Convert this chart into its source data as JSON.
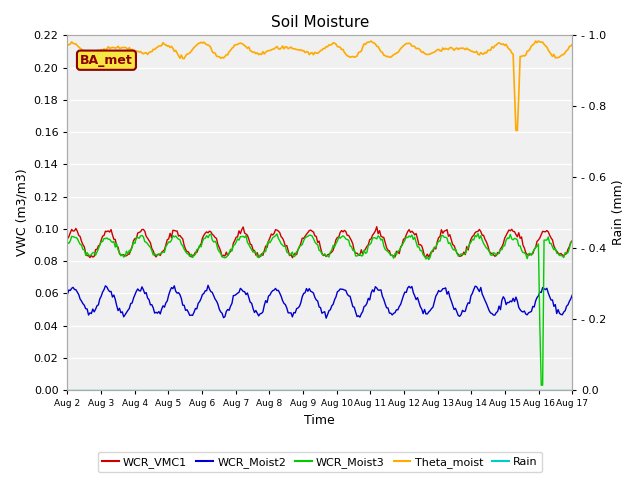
{
  "title": "Soil Moisture",
  "xlabel": "Time",
  "ylabel_left": "VWC (m3/m3)",
  "ylabel_right": "Rain (mm)",
  "ylim_left": [
    0.0,
    0.22
  ],
  "ylim_right": [
    0.0,
    1.0
  ],
  "background_color": "#f0f0f0",
  "plot_bg_color": "#f0f0f0",
  "annotation_text": "BA_met",
  "annotation_color": "#8b0000",
  "annotation_bg": "#f5e642",
  "colors": {
    "WCR_VMC1": "#cc0000",
    "WCR_Moist2": "#0000cc",
    "WCR_Moist3": "#00cc00",
    "Theta_moist": "#ffaa00",
    "Rain": "#00cccc"
  },
  "legend_labels": [
    "WCR_VMC1",
    "WCR_Moist2",
    "WCR_Moist3",
    "Theta_moist",
    "Rain"
  ],
  "right_ticks": [
    0.0,
    0.2,
    0.4,
    0.6,
    0.8,
    1.0
  ],
  "left_ticks": [
    0.0,
    0.02,
    0.04,
    0.06,
    0.08,
    0.1,
    0.12,
    0.14,
    0.16,
    0.18,
    0.2,
    0.22
  ],
  "tick_labels": [
    "Aug 2",
    "Aug 3",
    "Aug 4",
    "Aug 5",
    "Aug 6",
    "Aug 7",
    "Aug 8",
    "Aug 9",
    "Aug 10",
    "Aug 11",
    "Aug 12",
    "Aug 13",
    "Aug 14",
    "Aug 15",
    "Aug 16",
    "Aug 17"
  ]
}
